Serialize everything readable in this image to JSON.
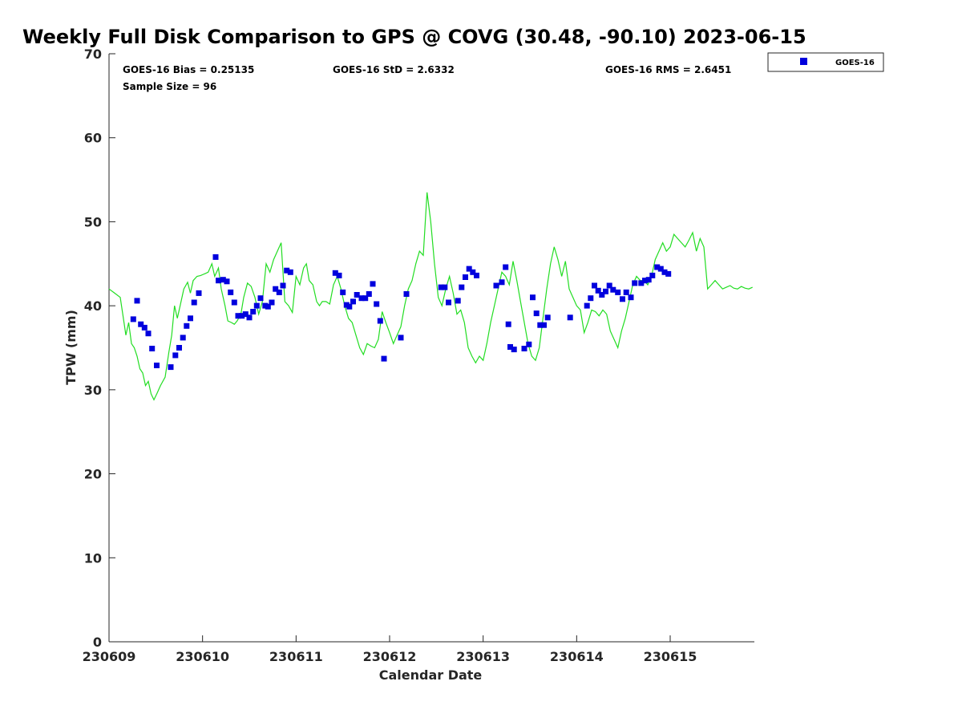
{
  "chart_data": {
    "type": "scatter",
    "title": "Weekly Full Disk Comparison to GPS @ COVG (30.48, -90.10) 2023-06-15",
    "xlabel": "Calendar Date",
    "ylabel": "TPW (mm)",
    "xlim": [
      0,
      6.9
    ],
    "ylim": [
      0,
      70
    ],
    "x_ticks": [
      0,
      1,
      2,
      3,
      4,
      5,
      6
    ],
    "x_tick_labels": [
      "230609",
      "230610",
      "230611",
      "230612",
      "230613",
      "230614",
      "230615"
    ],
    "y_ticks": [
      0,
      10,
      20,
      30,
      40,
      50,
      60,
      70
    ],
    "y_tick_labels": [
      "0",
      "10",
      "20",
      "30",
      "40",
      "50",
      "60",
      "70"
    ],
    "stats": {
      "bias": "GOES-16 Bias = 0.25135",
      "std": "GOES-16 StD = 2.6332",
      "rms": "GOES-16 RMS = 2.6451",
      "sample": "Sample Size = 96"
    },
    "legend": {
      "label": "GOES-16",
      "position": "top-right"
    },
    "colors": {
      "points": "#0000dd",
      "line": "#22dd22"
    },
    "series": [
      {
        "name": "GOES-16",
        "kind": "points",
        "x": [
          0.26,
          0.3,
          0.34,
          0.38,
          0.42,
          0.46,
          0.51,
          0.66,
          0.71,
          0.75,
          0.79,
          0.83,
          0.87,
          0.91,
          0.96,
          1.14,
          1.17,
          1.22,
          1.26,
          1.3,
          1.34,
          1.38,
          1.42,
          1.46,
          1.5,
          1.54,
          1.58,
          1.62,
          1.67,
          1.7,
          1.74,
          1.78,
          1.82,
          1.86,
          1.9,
          1.94,
          2.42,
          2.46,
          2.5,
          2.54,
          2.57,
          2.61,
          2.65,
          2.7,
          2.74,
          2.78,
          2.82,
          2.86,
          2.9,
          2.94,
          3.12,
          3.18,
          3.55,
          3.59,
          3.63,
          3.73,
          3.77,
          3.81,
          3.85,
          3.89,
          3.93,
          4.14,
          4.2,
          4.24,
          4.27,
          4.29,
          4.33,
          4.44,
          4.49,
          4.53,
          4.57,
          4.61,
          4.65,
          4.69,
          4.93,
          5.11,
          5.15,
          5.19,
          5.23,
          5.27,
          5.31,
          5.35,
          5.39,
          5.44,
          5.49,
          5.53,
          5.58,
          5.62,
          5.69,
          5.73,
          5.77,
          5.81,
          5.86,
          5.9,
          5.94,
          5.98
        ],
        "y": [
          38.4,
          40.6,
          37.8,
          37.4,
          36.7,
          34.9,
          32.9,
          32.7,
          34.1,
          35.0,
          36.2,
          37.6,
          38.5,
          40.4,
          41.5,
          45.8,
          43.0,
          43.1,
          42.9,
          41.6,
          40.4,
          38.8,
          38.8,
          39.0,
          38.6,
          39.3,
          40.0,
          40.9,
          40.0,
          39.9,
          40.4,
          42.0,
          41.6,
          42.4,
          44.2,
          44.0,
          43.9,
          43.6,
          41.6,
          40.1,
          39.9,
          40.5,
          41.3,
          40.9,
          40.9,
          41.4,
          42.6,
          40.2,
          38.2,
          33.7,
          36.2,
          41.4,
          42.2,
          42.2,
          40.4,
          40.6,
          42.2,
          43.4,
          44.4,
          44.0,
          43.6,
          42.4,
          42.8,
          44.6,
          37.8,
          35.1,
          34.8,
          34.9,
          35.4,
          41.0,
          39.1,
          37.7,
          37.7,
          38.6,
          38.6,
          40.0,
          40.9,
          42.4,
          41.8,
          41.3,
          41.7,
          42.4,
          41.9,
          41.6,
          40.8,
          41.6,
          41.0,
          42.7,
          42.7,
          43.0,
          43.1,
          43.6,
          44.6,
          44.4,
          44.0,
          43.8
        ]
      },
      {
        "name": "GPS",
        "kind": "line",
        "x": [
          0.0,
          0.06,
          0.12,
          0.16,
          0.18,
          0.21,
          0.24,
          0.27,
          0.3,
          0.33,
          0.36,
          0.39,
          0.42,
          0.45,
          0.48,
          0.51,
          0.55,
          0.6,
          0.64,
          0.67,
          0.7,
          0.73,
          0.76,
          0.8,
          0.84,
          0.87,
          0.9,
          0.94,
          0.98,
          1.02,
          1.06,
          1.1,
          1.13,
          1.17,
          1.2,
          1.24,
          1.27,
          1.31,
          1.34,
          1.37,
          1.41,
          1.44,
          1.48,
          1.52,
          1.56,
          1.6,
          1.64,
          1.68,
          1.72,
          1.76,
          1.8,
          1.84,
          1.88,
          1.92,
          1.96,
          2.0,
          2.04,
          2.08,
          2.11,
          2.14,
          2.18,
          2.22,
          2.25,
          2.28,
          2.32,
          2.36,
          2.4,
          2.44,
          2.48,
          2.52,
          2.56,
          2.6,
          2.64,
          2.68,
          2.72,
          2.76,
          2.8,
          2.84,
          2.88,
          2.92,
          2.96,
          3.0,
          3.04,
          3.08,
          3.12,
          3.16,
          3.2,
          3.24,
          3.28,
          3.32,
          3.36,
          3.4,
          3.44,
          3.48,
          3.52,
          3.56,
          3.6,
          3.64,
          3.68,
          3.72,
          3.76,
          3.8,
          3.84,
          3.88,
          3.92,
          3.96,
          4.0,
          4.04,
          4.08,
          4.12,
          4.16,
          4.2,
          4.24,
          4.28,
          4.32,
          4.36,
          4.4,
          4.44,
          4.48,
          4.52,
          4.56,
          4.6,
          4.64,
          4.68,
          4.72,
          4.76,
          4.8,
          4.84,
          4.88,
          4.92,
          4.96,
          5.0,
          5.04,
          5.08,
          5.12,
          5.16,
          5.2,
          5.24,
          5.28,
          5.32,
          5.36,
          5.4,
          5.44,
          5.48,
          5.52,
          5.56,
          5.6,
          5.64,
          5.68,
          5.72,
          5.76,
          5.8,
          5.84,
          5.88,
          5.92,
          5.96,
          6.0,
          6.04,
          6.08,
          6.12,
          6.16,
          6.2,
          6.24,
          6.28,
          6.32,
          6.36,
          6.4,
          6.44,
          6.48,
          6.52,
          6.56,
          6.6,
          6.64,
          6.68,
          6.72,
          6.76,
          6.8,
          6.84,
          6.88
        ],
        "y": [
          42.0,
          41.5,
          41.0,
          38.0,
          36.5,
          38.0,
          35.5,
          35.0,
          34.0,
          32.5,
          32.0,
          30.5,
          31.0,
          29.5,
          28.8,
          29.5,
          30.5,
          31.5,
          34.5,
          36.5,
          40.0,
          38.5,
          40.0,
          42.0,
          42.8,
          41.5,
          43.0,
          43.5,
          43.6,
          43.8,
          44.0,
          45.0,
          43.5,
          44.5,
          42.0,
          40.0,
          38.2,
          38.0,
          37.8,
          38.2,
          39.0,
          41.0,
          42.7,
          42.3,
          41.0,
          39.0,
          40.5,
          45.0,
          44.0,
          45.5,
          46.5,
          47.5,
          40.5,
          40.0,
          39.2,
          43.5,
          42.5,
          44.5,
          45.0,
          43.0,
          42.5,
          40.5,
          40.0,
          40.5,
          40.5,
          40.2,
          42.5,
          43.5,
          42.0,
          40.0,
          38.5,
          38.0,
          36.5,
          35.0,
          34.2,
          35.5,
          35.2,
          35.0,
          36.0,
          39.3,
          38.0,
          36.8,
          35.5,
          36.5,
          37.5,
          40.0,
          42.0,
          43.0,
          45.0,
          46.5,
          46.0,
          53.5,
          50.0,
          45.0,
          41.0,
          40.0,
          42.0,
          43.5,
          41.5,
          39.0,
          39.5,
          38.0,
          35.0,
          34.0,
          33.2,
          34.0,
          33.5,
          35.5,
          38.0,
          40.0,
          42.0,
          44.0,
          43.5,
          42.5,
          45.3,
          43.0,
          40.5,
          38.0,
          35.5,
          34.0,
          33.5,
          35.0,
          38.5,
          42.0,
          45.0,
          47.0,
          45.5,
          43.5,
          45.3,
          42.0,
          41.0,
          40.0,
          39.5,
          36.8,
          38.0,
          39.5,
          39.3,
          38.8,
          39.5,
          39.0,
          37.0,
          36.0,
          35.0,
          37.0,
          38.5,
          40.5,
          42.5,
          43.5,
          43.0,
          43.0,
          42.5,
          43.5,
          45.5,
          46.5,
          47.5,
          46.5,
          47.0,
          48.5,
          48.0,
          47.5,
          47.0,
          47.8,
          48.7,
          46.5,
          48.0,
          47.0,
          42.0,
          42.5,
          43.0,
          42.5,
          42.0,
          42.2,
          42.4,
          42.1,
          42.0,
          42.3,
          42.1,
          42.0,
          42.2
        ]
      }
    ]
  }
}
